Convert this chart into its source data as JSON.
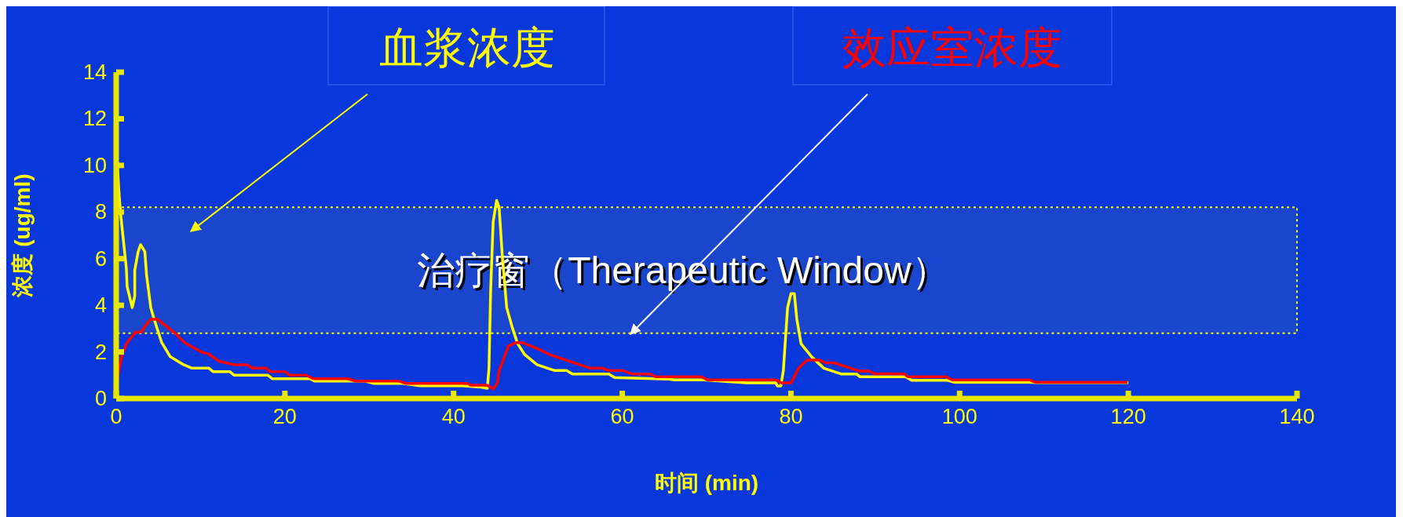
{
  "chart_data": {
    "type": "line",
    "xlabel": "时间 (min)",
    "ylabel": "浓度 (ug/ml)",
    "xlim": [
      0,
      140
    ],
    "xticks": [
      0,
      20,
      40,
      60,
      80,
      100,
      120,
      140
    ],
    "ylim": [
      0,
      14
    ],
    "yticks": [
      0,
      2,
      4,
      6,
      8,
      10,
      12,
      14
    ],
    "legend": false,
    "line_style": "solid",
    "bands": [
      {
        "axis": "y",
        "from": 2.8,
        "to": 8.2,
        "label": "治疗窗（Therapeutic Window）",
        "color": "#ffff00"
      }
    ],
    "series": [
      {
        "name": "血浆浓度",
        "color": "#ffff00",
        "x": [
          0,
          0.3,
          0.5,
          1.2,
          1.3,
          1.7,
          1.9,
          2.2,
          2.2,
          2.6,
          2.9,
          3.4,
          3.6,
          4.1,
          4.5,
          5.4,
          6.4,
          8,
          9,
          11,
          11.5,
          13.5,
          14,
          18,
          18.5,
          23,
          23.5,
          29.5,
          30.5,
          34,
          36,
          41,
          43,
          44,
          44.2,
          44.4,
          44.7,
          45.1,
          45.4,
          45.8,
          46.3,
          47,
          47.6,
          48.4,
          49.9,
          52,
          53.4,
          54.1,
          58.4,
          59.1,
          65.5,
          66.2,
          69.7,
          74.7,
          78.2,
          78.4,
          78.8,
          79.1,
          79.6,
          80,
          80.4,
          80.7,
          81.2,
          82.5,
          83.9,
          86,
          87.8,
          88.2,
          93.6,
          94.3,
          98.6,
          99.3,
          108.3,
          108.9,
          120
        ],
        "values": [
          11,
          9,
          8,
          5.6,
          4.8,
          4.2,
          3.9,
          4.4,
          5.5,
          6.3,
          6.6,
          6.3,
          5.3,
          3.9,
          3.4,
          2.4,
          1.8,
          1.45,
          1.3,
          1.3,
          1.15,
          1.15,
          1,
          1,
          0.85,
          0.85,
          0.75,
          0.75,
          0.65,
          0.65,
          0.55,
          0.55,
          0.5,
          0.44,
          1.3,
          4.7,
          7.6,
          8.5,
          8.2,
          6,
          3.9,
          3,
          2.35,
          1.9,
          1.45,
          1.2,
          1.2,
          1.05,
          1.05,
          0.9,
          0.83,
          0.8,
          0.8,
          0.67,
          0.67,
          0.54,
          0.54,
          1.2,
          3.9,
          4.5,
          4.5,
          3.4,
          2.35,
          1.77,
          1.3,
          1.05,
          1.05,
          0.93,
          0.93,
          0.78,
          0.78,
          0.7,
          0.7,
          0.68,
          0.68
        ]
      },
      {
        "name": "效应室浓度",
        "color": "#ff0000",
        "x": [
          0,
          0.2,
          0.7,
          1.3,
          2.3,
          3,
          3.4,
          4.1,
          4.9,
          5.6,
          7,
          8.1,
          10.1,
          11,
          12.2,
          14,
          15.5,
          16.2,
          17.8,
          18.2,
          20,
          20.6,
          22.5,
          23.4,
          27.5,
          28.3,
          33.5,
          34.3,
          41.7,
          42,
          44,
          44.7,
          45.2,
          45.4,
          45.8,
          46.5,
          47.4,
          48.1,
          49.9,
          51.3,
          56.2,
          57.7,
          58.4,
          60.1,
          61.2,
          63.3,
          64,
          69.4,
          70.1,
          78.2,
          78.9,
          80,
          80.4,
          80.9,
          81.9,
          83.4,
          84.1,
          85.1,
          88.1,
          89.3,
          89.9,
          93.4,
          93.9,
          98.4,
          99.1,
          108.3,
          108.9,
          119.9
        ],
        "values": [
          0,
          1,
          1.9,
          2.4,
          2.85,
          2.85,
          3.1,
          3.4,
          3.4,
          3.2,
          2.8,
          2.4,
          2,
          1.9,
          1.6,
          1.45,
          1.45,
          1.3,
          1.3,
          1.15,
          1.15,
          1,
          1,
          0.85,
          0.85,
          0.75,
          0.75,
          0.65,
          0.65,
          0.57,
          0.57,
          0.41,
          0.67,
          1.2,
          1.57,
          2.25,
          2.4,
          2.4,
          2.15,
          1.9,
          1.3,
          1.3,
          1.2,
          1.2,
          1.05,
          1.05,
          0.93,
          0.93,
          0.8,
          0.8,
          0.67,
          0.67,
          0.93,
          1.3,
          1.65,
          1.65,
          1.53,
          1.53,
          1.18,
          1.18,
          1.06,
          1.06,
          0.93,
          0.93,
          0.8,
          0.8,
          0.7,
          0.7
        ]
      }
    ]
  }
}
